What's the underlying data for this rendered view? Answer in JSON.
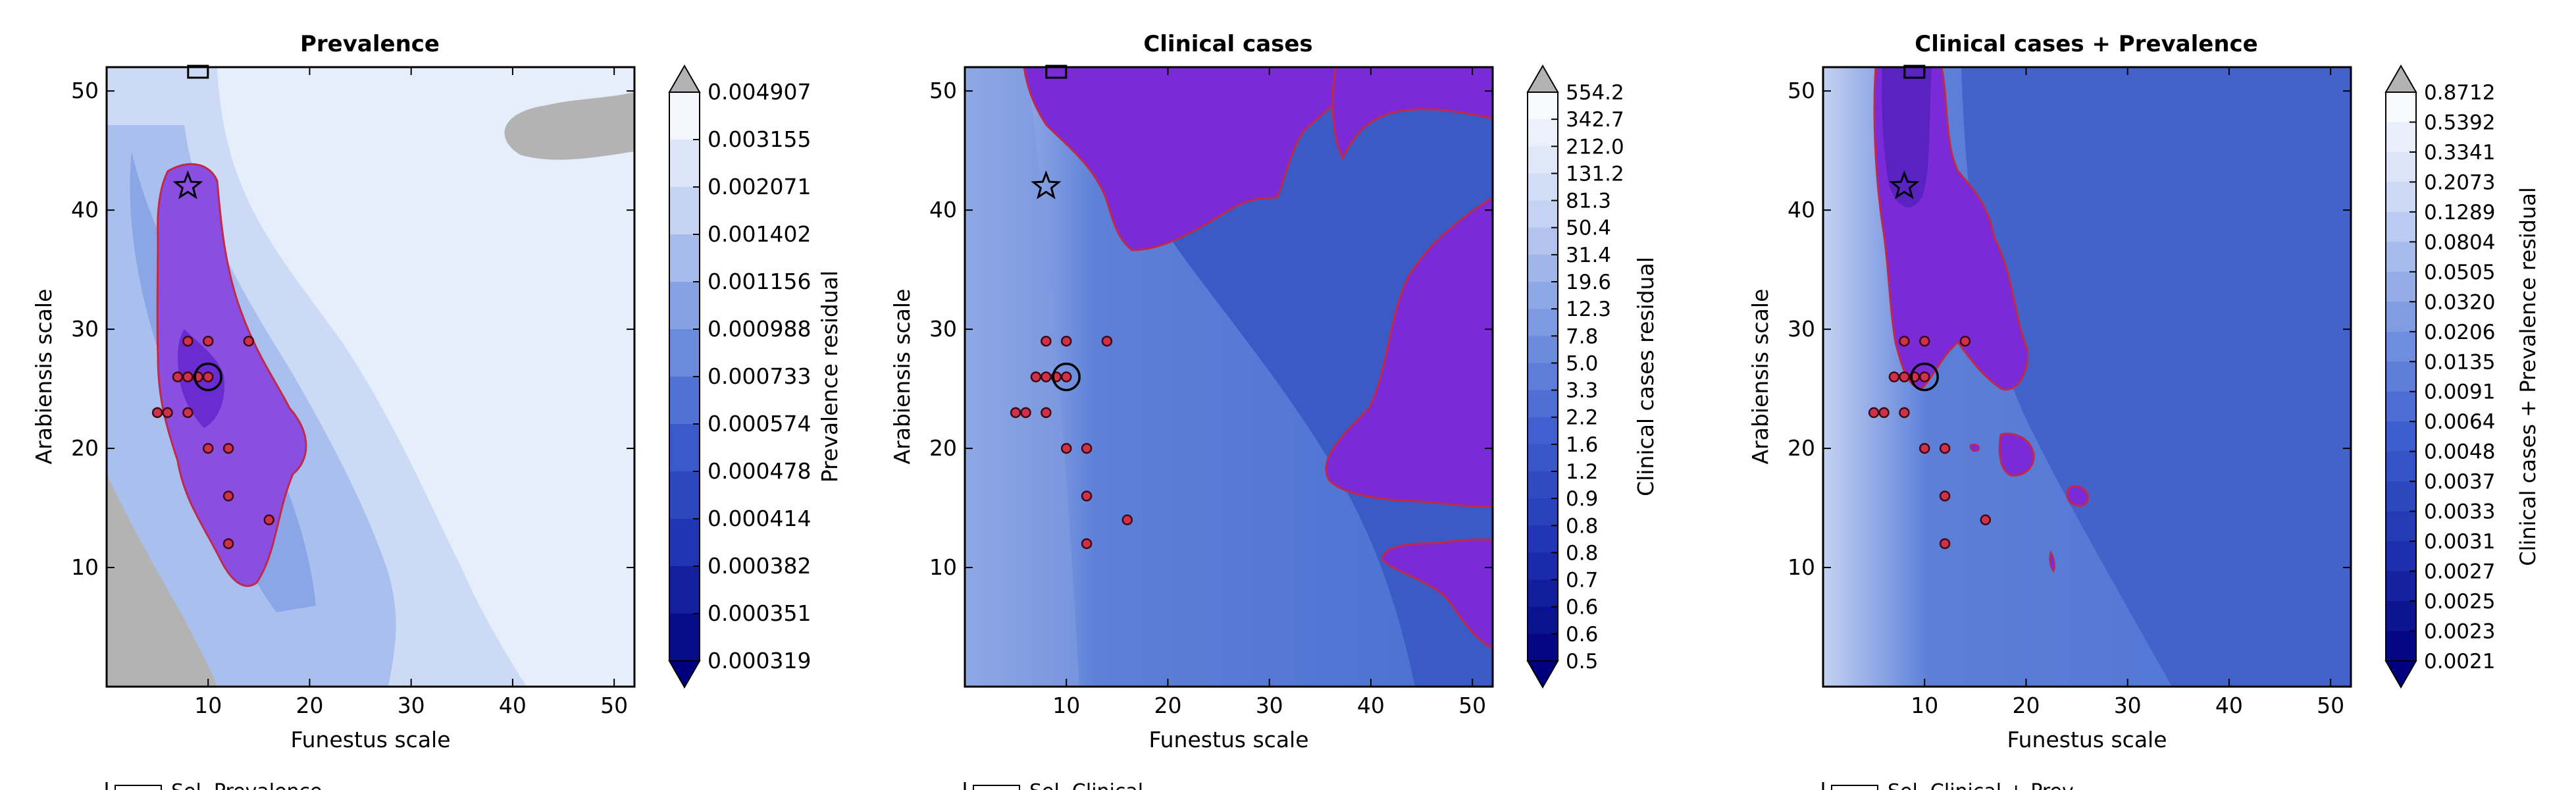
{
  "chart_data": [
    {
      "type": "heatmap",
      "title": "Prevalence",
      "xlabel": "Funestus scale",
      "ylabel": "Arabiensis scale",
      "xlim": [
        0,
        52
      ],
      "ylim": [
        0,
        52
      ],
      "x_ticks": [
        "10",
        "20",
        "30",
        "40",
        "50"
      ],
      "y_ticks": [
        "10",
        "20",
        "30",
        "40",
        "50"
      ],
      "colorbar_label": "Prevalence residual",
      "colorbar_ticks": [
        "0.004907",
        "0.003155",
        "0.002071",
        "0.001402",
        "0.001156",
        "0.000988",
        "0.000733",
        "0.000574",
        "0.000478",
        "0.000414",
        "0.000382",
        "0.000351",
        "0.000319"
      ],
      "legend_text": "Sel. Prevalence"
    },
    {
      "type": "heatmap",
      "title": "Clinical cases",
      "xlabel": "Funestus scale",
      "ylabel": "Arabiensis scale",
      "xlim": [
        0,
        52
      ],
      "ylim": [
        0,
        52
      ],
      "x_ticks": [
        "10",
        "20",
        "30",
        "40",
        "50"
      ],
      "y_ticks": [
        "10",
        "20",
        "30",
        "40",
        "50"
      ],
      "colorbar_label": "Clinical cases residual",
      "colorbar_ticks": [
        "554.2",
        "342.7",
        "212.0",
        "131.2",
        "81.3",
        "50.4",
        "31.4",
        "19.6",
        "12.3",
        "7.8",
        "5.0",
        "3.3",
        "2.2",
        "1.6",
        "1.2",
        "0.9",
        "0.8",
        "0.8",
        "0.7",
        "0.6",
        "0.6",
        "0.5"
      ],
      "legend_text": "Sel. Clinical"
    },
    {
      "type": "heatmap",
      "title": "Clinical cases + Prevalence",
      "xlabel": "Funestus scale",
      "ylabel": "Arabiensis scale",
      "xlim": [
        0,
        52
      ],
      "ylim": [
        0,
        52
      ],
      "x_ticks": [
        "10",
        "20",
        "30",
        "40",
        "50"
      ],
      "y_ticks": [
        "10",
        "20",
        "30",
        "40",
        "50"
      ],
      "colorbar_label": "Clinical cases + Prevalence residual",
      "colorbar_ticks": [
        "0.8712",
        "0.5392",
        "0.3341",
        "0.2073",
        "0.1289",
        "0.0804",
        "0.0505",
        "0.0320",
        "0.0206",
        "0.0135",
        "0.0091",
        "0.0064",
        "0.0048",
        "0.0037",
        "0.0033",
        "0.0031",
        "0.0027",
        "0.0025",
        "0.0023",
        "0.0021"
      ],
      "legend_text": "Sel. Clinical + Prev."
    }
  ],
  "markers": {
    "red_points": [
      [
        8,
        29
      ],
      [
        10,
        29
      ],
      [
        14,
        29
      ],
      [
        7,
        26
      ],
      [
        8,
        26
      ],
      [
        9,
        26
      ],
      [
        5,
        23
      ],
      [
        6,
        23
      ],
      [
        8,
        23
      ],
      [
        10,
        20
      ],
      [
        12,
        20
      ],
      [
        12,
        16
      ],
      [
        16,
        14
      ],
      [
        12,
        12
      ]
    ],
    "circle_point": [
      10,
      26
    ],
    "star_point": [
      8,
      42
    ],
    "square_point": [
      9,
      52
    ]
  },
  "colors": {
    "background_light": "#e6eefb",
    "mid_blue": "#4f74d2",
    "dark_blue": "#2e4cc0",
    "purple": "#7a2ad6",
    "contour": "#c0294a",
    "grey": "#b3b3b3",
    "navy": "#00007f"
  }
}
